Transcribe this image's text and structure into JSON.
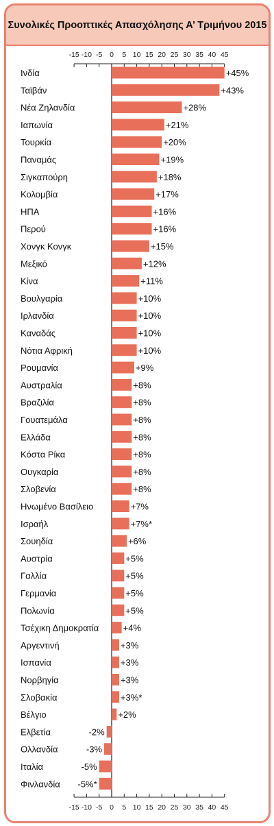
{
  "title": "Συνολικές Προοπτικές Απασχόλησης Α’ Τριμήνου 2015",
  "colors": {
    "bar": "#e8705a",
    "border": "#e8826e",
    "header_bg": "#f6c9b9",
    "axis": "#222222"
  },
  "chart_data": {
    "type": "bar",
    "orientation": "horizontal",
    "title": "Συνολικές Προοπτικές Απασχόλησης Α’ Τριμήνου 2015",
    "xlim": [
      -15,
      45
    ],
    "ticks": [
      -15,
      -10,
      -5,
      0,
      5,
      10,
      15,
      20,
      25,
      30,
      35,
      40,
      45
    ],
    "tick_labels": [
      "-15",
      "-10",
      "-5",
      "0",
      "5",
      "10",
      "15",
      "20",
      "25",
      "30",
      "35",
      "40",
      "45"
    ],
    "axis_position": "top and bottom",
    "categories": [
      "Ινδία",
      "Ταϊβάν",
      "Νέα Ζηλανδία",
      "Ιαπωνία",
      "Τουρκία",
      "Παναμάς",
      "Σιγκαπούρη",
      "Κολομβία",
      "ΗΠΑ",
      "Περού",
      "Χονγκ Κονγκ",
      "Μεξικό",
      "Κίνα",
      "Βουλγαρία",
      "Ιρλανδία",
      "Καναδάς",
      "Νότια Αφρική",
      "Ρουμανία",
      "Αυστραλία",
      "Βραζιλία",
      "Γουατεμάλα",
      "Ελλάδα",
      "Κόστα Ρίκα",
      "Ουγκαρία",
      "Σλοβενία",
      "Ηνωμένο Βασίλειο",
      "Ισραήλ",
      "Σουηδία",
      "Αυστρία",
      "Γαλλία",
      "Γερμανία",
      "Πολωνία",
      "Τσέχικη Δημοκρατία",
      "Αργεντινή",
      "Ισπανία",
      "Νορβηγία",
      "Σλοβακία",
      "Βέλγιο",
      "Ελβετία",
      "Ολλανδία",
      "Ιταλία",
      "Φινλανδία"
    ],
    "values": [
      45,
      43,
      28,
      21,
      20,
      19,
      18,
      17,
      16,
      16,
      15,
      12,
      11,
      10,
      10,
      10,
      10,
      9,
      8,
      8,
      8,
      8,
      8,
      8,
      8,
      7,
      7,
      6,
      5,
      5,
      5,
      5,
      4,
      3,
      3,
      3,
      3,
      2,
      -2,
      -3,
      -5,
      -5
    ],
    "value_labels": [
      "+45%",
      "+43%",
      "+28%",
      "+21%",
      "+20%",
      "+19%",
      "+18%",
      "+17%",
      "+16%",
      "+16%",
      "+15%",
      "+12%",
      "+11%",
      "+10%",
      "+10%",
      "+10%",
      "+10%",
      "+9%",
      "+8%",
      "+8%",
      "+8%",
      "+8%",
      "+8%",
      "+8%",
      "+8%",
      "+7%",
      "+7%*",
      "+6%",
      "+5%",
      "+5%",
      "+5%",
      "+5%",
      "+4%",
      "+3%",
      "+3%",
      "+3%",
      "+3%*",
      "+2%",
      "-2%",
      "-3%",
      "-5%",
      "-5%*"
    ]
  }
}
